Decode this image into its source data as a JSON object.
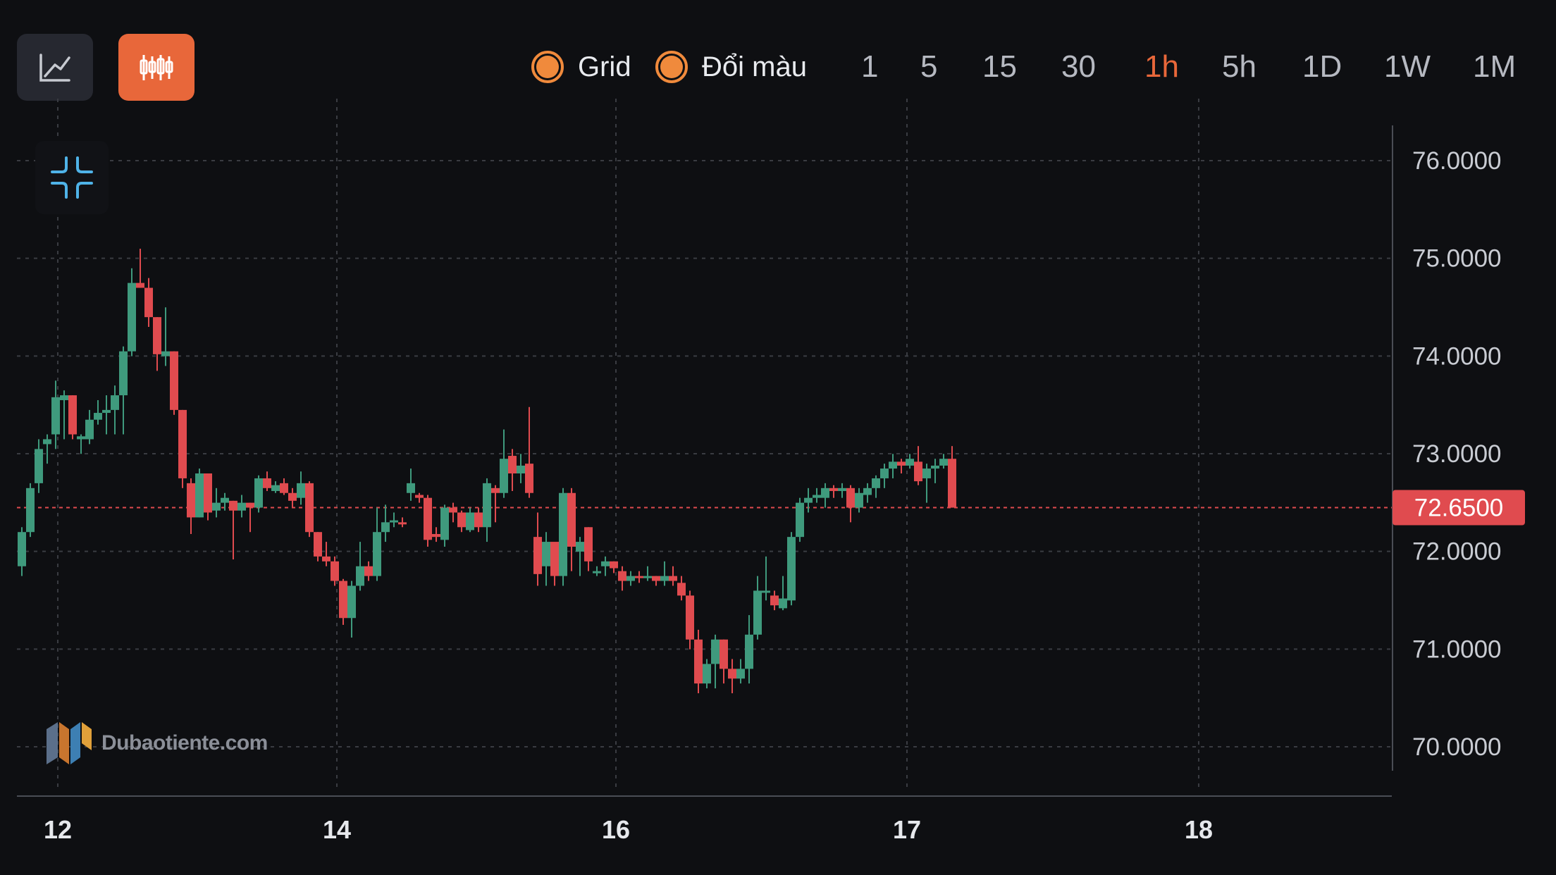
{
  "toolbar": {
    "chart_type_buttons": [
      {
        "icon": "line-chart-icon",
        "active": false
      },
      {
        "icon": "candlestick-icon",
        "active": true
      }
    ],
    "toggles": [
      {
        "label": "Grid",
        "checked": true
      },
      {
        "label": "Đổi màu",
        "checked": true
      }
    ],
    "timeframes": [
      "1",
      "5",
      "15",
      "30",
      "1h",
      "5h",
      "1D",
      "1W",
      "1M"
    ],
    "active_timeframe": "1h",
    "accent_color": "#e8673a"
  },
  "watermark": {
    "text": "Dubaotiente.com",
    "icon": "dubaotiente-logo"
  },
  "collapse_button": {
    "icon": "collapse-arrows-icon"
  },
  "chart_data": {
    "type": "candlestick",
    "grid": true,
    "up_color": "#3f9a7d",
    "down_color": "#e04b4f",
    "y_axis": {
      "ticks": [
        "76.0000",
        "75.0000",
        "74.0000",
        "73.0000",
        "72.0000",
        "71.0000",
        "70.0000"
      ],
      "range": [
        69.9,
        76.35
      ]
    },
    "x_axis": {
      "ticks": [
        "12",
        "14",
        "16",
        "17",
        "18"
      ],
      "tick_index": [
        3,
        25,
        47,
        70,
        93
      ]
    },
    "last_price": {
      "value": 72.65,
      "label": "72.6500"
    },
    "candles": [
      [
        72.05,
        72.4,
        72.45,
        71.95
      ],
      [
        72.4,
        72.85,
        72.9,
        72.35
      ],
      [
        72.9,
        73.25,
        73.35,
        72.8
      ],
      [
        73.3,
        73.35,
        73.4,
        73.1
      ],
      [
        73.4,
        73.78,
        73.95,
        73.25
      ],
      [
        73.75,
        73.8,
        73.85,
        73.35
      ],
      [
        73.8,
        73.4,
        73.8,
        73.35
      ],
      [
        73.35,
        73.38,
        73.4,
        73.2
      ],
      [
        73.35,
        73.55,
        73.65,
        73.3
      ],
      [
        73.55,
        73.62,
        73.75,
        73.5
      ],
      [
        73.62,
        73.65,
        73.8,
        73.4
      ],
      [
        73.65,
        73.8,
        73.9,
        73.4
      ],
      [
        73.8,
        74.25,
        74.3,
        73.4
      ],
      [
        74.25,
        74.95,
        75.1,
        74.2
      ],
      [
        74.95,
        74.9,
        75.3,
        74.9
      ],
      [
        74.9,
        74.6,
        75.0,
        74.5
      ],
      [
        74.6,
        74.22,
        74.6,
        74.05
      ],
      [
        74.2,
        74.25,
        74.7,
        74.1
      ],
      [
        74.25,
        73.65,
        74.25,
        73.6
      ],
      [
        73.65,
        72.95,
        73.65,
        72.85
      ],
      [
        72.9,
        72.55,
        72.95,
        72.38
      ],
      [
        72.55,
        73.0,
        73.05,
        72.55
      ],
      [
        73.0,
        72.6,
        73.0,
        72.52
      ],
      [
        72.62,
        72.7,
        72.85,
        72.55
      ],
      [
        72.7,
        72.75,
        72.8,
        72.62
      ],
      [
        72.72,
        72.62,
        72.72,
        72.12
      ],
      [
        72.62,
        72.7,
        72.78,
        72.55
      ],
      [
        72.7,
        72.65,
        72.7,
        72.4
      ],
      [
        72.65,
        72.95,
        72.98,
        72.6
      ],
      [
        72.95,
        72.85,
        73.02,
        72.82
      ],
      [
        72.82,
        72.88,
        72.92,
        72.8
      ],
      [
        72.9,
        72.8,
        72.95,
        72.78
      ],
      [
        72.8,
        72.72,
        72.85,
        72.65
      ],
      [
        72.75,
        72.9,
        73.02,
        72.68
      ],
      [
        72.9,
        72.4,
        72.92,
        72.35
      ],
      [
        72.4,
        72.15,
        72.4,
        72.1
      ],
      [
        72.15,
        72.1,
        72.3,
        72.05
      ],
      [
        72.1,
        71.9,
        72.15,
        71.85
      ],
      [
        71.9,
        71.52,
        71.92,
        71.45
      ],
      [
        71.52,
        71.85,
        71.9,
        71.32
      ],
      [
        71.85,
        72.05,
        72.3,
        71.8
      ],
      [
        72.05,
        71.95,
        72.1,
        71.9
      ],
      [
        71.95,
        72.4,
        72.65,
        71.9
      ],
      [
        72.4,
        72.5,
        72.68,
        72.3
      ],
      [
        72.5,
        72.52,
        72.6,
        72.45
      ],
      [
        72.5,
        72.48,
        72.55,
        72.45
      ],
      [
        72.8,
        72.9,
        73.05,
        72.72
      ],
      [
        72.78,
        72.75,
        72.8,
        72.7
      ],
      [
        72.75,
        72.32,
        72.78,
        72.25
      ],
      [
        72.38,
        72.35,
        72.45,
        72.3
      ],
      [
        72.32,
        72.65,
        72.68,
        72.25
      ],
      [
        72.65,
        72.6,
        72.7,
        72.5
      ],
      [
        72.6,
        72.45,
        72.62,
        72.4
      ],
      [
        72.42,
        72.6,
        72.65,
        72.4
      ],
      [
        72.6,
        72.45,
        72.65,
        72.4
      ],
      [
        72.45,
        72.9,
        72.95,
        72.3
      ],
      [
        72.85,
        72.8,
        72.88,
        72.5
      ],
      [
        72.8,
        73.15,
        73.45,
        72.75
      ],
      [
        73.18,
        73.0,
        73.25,
        72.82
      ],
      [
        73.0,
        73.08,
        73.2,
        72.9
      ],
      [
        73.1,
        72.8,
        73.68,
        72.75
      ],
      [
        72.35,
        71.97,
        72.6,
        71.85
      ],
      [
        72.05,
        72.3,
        72.4,
        71.85
      ],
      [
        72.3,
        71.95,
        72.05,
        71.85
      ],
      [
        71.95,
        72.8,
        72.85,
        71.85
      ],
      [
        72.8,
        72.25,
        72.85,
        72.0
      ],
      [
        72.2,
        72.3,
        72.35,
        71.95
      ],
      [
        72.45,
        72.1,
        72.45,
        72.0
      ],
      [
        72.0,
        72.0,
        72.05,
        71.95
      ],
      [
        72.05,
        72.1,
        72.15,
        71.95
      ],
      [
        72.1,
        72.03,
        72.1,
        71.98
      ],
      [
        72.0,
        71.9,
        72.05,
        71.8
      ],
      [
        71.9,
        71.95,
        72.0,
        71.85
      ],
      [
        71.95,
        71.93,
        72.0,
        71.88
      ],
      [
        71.93,
        71.95,
        72.05,
        71.9
      ],
      [
        71.95,
        71.9,
        71.95,
        71.85
      ],
      [
        71.9,
        71.95,
        72.1,
        71.85
      ],
      [
        71.95,
        71.9,
        72.05,
        71.85
      ],
      [
        71.88,
        71.75,
        71.95,
        71.7
      ],
      [
        71.75,
        71.3,
        71.8,
        71.2
      ],
      [
        71.3,
        70.85,
        71.4,
        70.75
      ],
      [
        70.85,
        71.05,
        71.1,
        70.8
      ],
      [
        71.05,
        71.3,
        71.35,
        70.8
      ],
      [
        71.3,
        71.0,
        71.3,
        70.85
      ],
      [
        71.0,
        70.9,
        71.1,
        70.75
      ],
      [
        70.9,
        71.0,
        71.1,
        70.85
      ],
      [
        71.0,
        71.35,
        71.55,
        70.85
      ],
      [
        71.35,
        71.8,
        71.95,
        71.3
      ],
      [
        71.8,
        71.8,
        72.15,
        71.7
      ],
      [
        71.75,
        71.65,
        71.8,
        71.6
      ],
      [
        71.62,
        71.72,
        71.95,
        71.6
      ],
      [
        71.7,
        72.35,
        72.4,
        71.65
      ],
      [
        72.35,
        72.7,
        72.75,
        72.3
      ],
      [
        72.7,
        72.75,
        72.85,
        72.6
      ],
      [
        72.75,
        72.78,
        72.85,
        72.7
      ],
      [
        72.75,
        72.85,
        72.9,
        72.65
      ],
      [
        72.85,
        72.82,
        72.88,
        72.75
      ],
      [
        72.82,
        72.85,
        72.9,
        72.75
      ],
      [
        72.85,
        72.65,
        72.88,
        72.5
      ],
      [
        72.65,
        72.8,
        72.85,
        72.6
      ],
      [
        72.78,
        72.85,
        72.9,
        72.7
      ],
      [
        72.85,
        72.95,
        72.98,
        72.75
      ],
      [
        72.95,
        73.05,
        73.1,
        72.85
      ],
      [
        73.05,
        73.12,
        73.2,
        72.95
      ],
      [
        73.12,
        73.08,
        73.15,
        73.0
      ],
      [
        73.08,
        73.15,
        73.2,
        73.05
      ],
      [
        73.12,
        72.92,
        73.28,
        72.88
      ],
      [
        72.95,
        73.05,
        73.1,
        72.7
      ],
      [
        73.05,
        73.08,
        73.15,
        72.9
      ],
      [
        73.08,
        73.15,
        73.2,
        73.05
      ],
      [
        73.15,
        72.65,
        73.28,
        72.65
      ]
    ]
  }
}
